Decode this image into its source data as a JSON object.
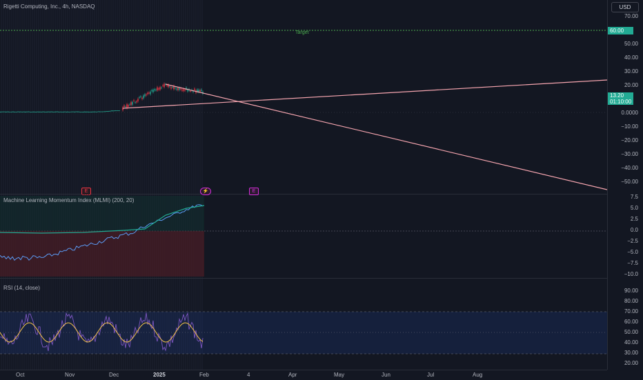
{
  "chart": {
    "symbol_title": "Rigetti Computing, Inc., 4h, NASDAQ",
    "currency": "USD",
    "target_label": "Target",
    "target_price": "60.00",
    "last_price": "13.20",
    "countdown": "01:10:00",
    "events": [
      "E",
      "⚡",
      "E"
    ],
    "colors": {
      "up": "#22ab94",
      "down": "#f23645",
      "trendline": "#f7a6b0",
      "target": "#4caf50"
    }
  },
  "price_axis": {
    "ticks": [
      "70.00",
      "60.00",
      "50.00",
      "40.00",
      "30.00",
      "20.00",
      "10.00",
      "0.0000",
      "−10.00",
      "−20.00",
      "−30.00",
      "−40.00",
      "−50.00"
    ]
  },
  "mlmi": {
    "title": "Machine Learning Momentum Index (MLMI) (200, 20)",
    "ticks": [
      "7.5",
      "5.0",
      "2.5",
      "0.0",
      "−2.5",
      "−5.0",
      "−7.5",
      "−10.0"
    ]
  },
  "rsi": {
    "title": "RSI (14, close)",
    "ticks": [
      "90.00",
      "80.00",
      "70.00",
      "60.00",
      "50.00",
      "40.00",
      "30.00",
      "20.00"
    ]
  },
  "time_axis": {
    "labels": [
      "Oct",
      "Nov",
      "Dec",
      "2025",
      "Feb",
      "4",
      "Apr",
      "May",
      "Jun",
      "Jul",
      "Aug"
    ]
  }
}
